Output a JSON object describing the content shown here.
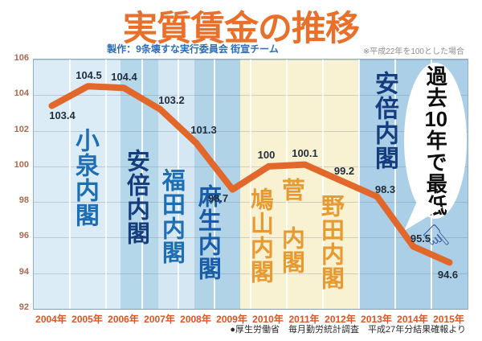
{
  "header": {
    "title": "実質賃金の推移",
    "subtitle": "製作：9条壊すな実行委員会 街宣チーム",
    "note": "※平成22年を100とした場合"
  },
  "footer": {
    "source": "●厚生労働省　毎月勤労統計調査　平成27年分結果確報より"
  },
  "annotation": {
    "parts": [
      "過去",
      "10",
      "年で最低"
    ],
    "hand_icon_glyph": "☟"
  },
  "colors": {
    "title": "#e8702a",
    "subtitle": "#2e6cb6",
    "line": "#e2672a",
    "year_labels": "#dd5420",
    "tick_labels": "#a96a50",
    "ldp_label_blue": "#1e6eb4",
    "abe_label_navy": "#153c7c",
    "dpj_label_orange": "#e79a32"
  },
  "chart_data": {
    "type": "line",
    "title": "実質賃金の推移",
    "years": [
      2004,
      2005,
      2006,
      2007,
      2008,
      2009,
      2010,
      2011,
      2012,
      2013,
      2014,
      2015
    ],
    "x_labels": [
      "2004年",
      "2005年",
      "2006年",
      "2007年",
      "2008年",
      "2009年",
      "2010年",
      "2011年",
      "2012年",
      "2013年",
      "2014年",
      "2015年"
    ],
    "values": [
      103.4,
      104.5,
      104.4,
      103.2,
      101.3,
      98.7,
      100,
      100.1,
      99.2,
      98.3,
      95.5,
      94.6
    ],
    "point_labels": [
      "103.4",
      "104.5",
      "104.4",
      "103.2",
      "101.3",
      "98.7",
      "100",
      "100.1",
      "99.2",
      "98.3",
      "95.5",
      "94.6"
    ],
    "ylim": [
      92,
      106
    ],
    "xlim": [
      2004,
      2016
    ],
    "y_ticks": [
      106,
      104,
      102,
      100,
      98,
      96,
      94,
      92
    ],
    "grid": true,
    "legend": "none",
    "line_color": "#e2672a",
    "unit_note": "※平成22年を100とした場合",
    "bands": [
      {
        "label": "小泉内閣",
        "start": 2004.0,
        "end": 2006.4,
        "band_color": "#dcecf7",
        "text_color": "#1e6eb4"
      },
      {
        "label": "安倍内閣",
        "start": 2006.4,
        "end": 2007.45,
        "band_color": "#b5d7ea",
        "text_color": "#153c7c"
      },
      {
        "label": "福田内閣",
        "start": 2007.45,
        "end": 2008.45,
        "band_color": "#d4e7f3",
        "text_color": "#1e6eb4"
      },
      {
        "label": "麻生内閣",
        "start": 2008.45,
        "end": 2009.7,
        "band_color": "#b0d3e8",
        "text_color": "#1a5ca6"
      },
      {
        "label": "鳩山内閣",
        "start": 2009.7,
        "end": 2010.45,
        "band_color": "#f9f2d2",
        "text_color": "#e79a32"
      },
      {
        "label": "菅　内閣",
        "start": 2010.45,
        "end": 2011.7,
        "band_color": "#f9f2d2",
        "text_color": "#e79a32"
      },
      {
        "label": "野田内閣",
        "start": 2011.7,
        "end": 2013.0,
        "band_color": "#f9f2d2",
        "text_color": "#e79a32"
      },
      {
        "label": "安倍内閣",
        "start": 2013.0,
        "end": 2016.0,
        "band_color": "#aacfe6",
        "text_color": "#153c7c"
      }
    ],
    "callout": "過去10年で最低"
  }
}
